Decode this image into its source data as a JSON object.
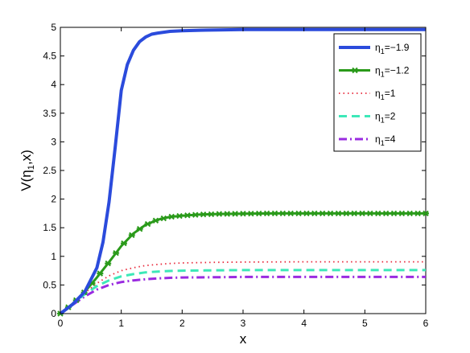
{
  "chart_data": {
    "type": "line",
    "title": "",
    "xlabel": "x",
    "ylabel": "V(η",
    "ylabel_sub": "1",
    "ylabel_tail": ",x)",
    "xlim": [
      0,
      6
    ],
    "ylim": [
      0,
      5
    ],
    "x_ticks": [
      0,
      1,
      2,
      3,
      4,
      5,
      6
    ],
    "y_ticks": [
      0,
      0.5,
      1,
      1.5,
      2,
      2.5,
      3,
      3.5,
      4,
      4.5,
      5
    ],
    "grid": false,
    "legend_position": "top-right",
    "series": [
      {
        "name": "η1=−1.9",
        "legend_main": "η",
        "legend_sub": "1",
        "legend_tail": "=−1.9",
        "color": "#2b4bdc",
        "style": "solid-thick",
        "x": [
          0,
          0.2,
          0.4,
          0.6,
          0.7,
          0.8,
          0.9,
          1.0,
          1.1,
          1.2,
          1.3,
          1.4,
          1.5,
          1.6,
          1.8,
          2.0,
          2.3,
          2.6,
          3.0,
          4.0,
          5.0,
          6.0
        ],
        "y": [
          0,
          0.16,
          0.38,
          0.8,
          1.25,
          1.95,
          2.9,
          3.9,
          4.35,
          4.6,
          4.75,
          4.83,
          4.88,
          4.9,
          4.93,
          4.94,
          4.95,
          4.955,
          4.96,
          4.96,
          4.96,
          4.96
        ]
      },
      {
        "name": "η1=−1.2",
        "legend_main": "η",
        "legend_sub": "1",
        "legend_tail": "=−1.2",
        "color": "#2a9a1a",
        "style": "solid-markers",
        "x": [
          0,
          0.2,
          0.4,
          0.6,
          0.8,
          1.0,
          1.2,
          1.4,
          1.6,
          1.8,
          2.0,
          2.3,
          2.6,
          3.0,
          3.5,
          4.0,
          5.0,
          6.0
        ],
        "y": [
          0,
          0.17,
          0.38,
          0.63,
          0.9,
          1.18,
          1.4,
          1.55,
          1.64,
          1.69,
          1.71,
          1.73,
          1.74,
          1.745,
          1.75,
          1.75,
          1.75,
          1.75
        ]
      },
      {
        "name": "η1=1",
        "legend_main": "η",
        "legend_sub": "1",
        "legend_tail": "=1",
        "color": "#e8283a",
        "style": "dotted",
        "x": [
          0,
          0.2,
          0.4,
          0.6,
          0.8,
          1.0,
          1.2,
          1.4,
          1.6,
          1.8,
          2.0,
          2.5,
          3.0,
          4.0,
          5.0,
          6.0
        ],
        "y": [
          0,
          0.16,
          0.36,
          0.53,
          0.66,
          0.75,
          0.8,
          0.84,
          0.86,
          0.875,
          0.885,
          0.895,
          0.9,
          0.905,
          0.905,
          0.905
        ]
      },
      {
        "name": "η1=2",
        "legend_main": "η",
        "legend_sub": "1",
        "legend_tail": "=2",
        "color": "#3de8b8",
        "style": "dashed",
        "x": [
          0,
          0.2,
          0.4,
          0.6,
          0.8,
          1.0,
          1.2,
          1.4,
          1.6,
          1.8,
          2.0,
          2.5,
          3.0,
          4.0,
          5.0,
          6.0
        ],
        "y": [
          0,
          0.16,
          0.34,
          0.48,
          0.58,
          0.65,
          0.69,
          0.72,
          0.735,
          0.745,
          0.75,
          0.755,
          0.76,
          0.76,
          0.76,
          0.76
        ]
      },
      {
        "name": "η1=4",
        "legend_main": "η",
        "legend_sub": "1",
        "legend_tail": "=4",
        "color": "#9a2be0",
        "style": "dashdot",
        "x": [
          0,
          0.2,
          0.4,
          0.6,
          0.8,
          1.0,
          1.2,
          1.4,
          1.6,
          1.8,
          2.0,
          2.5,
          3.0,
          4.0,
          5.0,
          6.0
        ],
        "y": [
          0,
          0.15,
          0.3,
          0.42,
          0.5,
          0.55,
          0.58,
          0.6,
          0.615,
          0.625,
          0.63,
          0.635,
          0.64,
          0.64,
          0.64,
          0.64
        ]
      }
    ]
  }
}
